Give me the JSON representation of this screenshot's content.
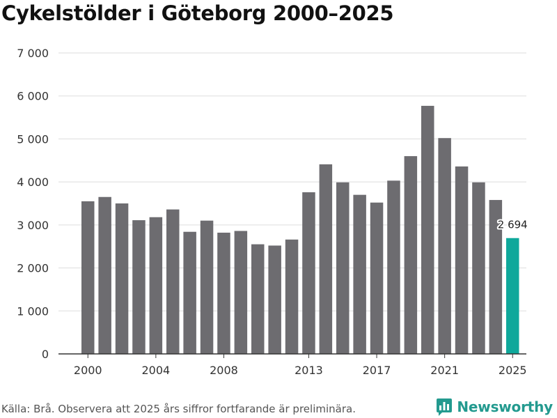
{
  "chart_data": {
    "type": "bar",
    "title": "Cykelstölder i Göteborg 2000–2025",
    "xlabel": "",
    "ylabel": "",
    "ylim": [
      0,
      7000
    ],
    "yticks": [
      0,
      1000,
      2000,
      3000,
      4000,
      5000,
      6000,
      7000
    ],
    "ytick_labels": [
      "0",
      "1 000",
      "2 000",
      "3 000",
      "4 000",
      "5 000",
      "6 000",
      "7 000"
    ],
    "xtick_labels": [
      "2000",
      "2004",
      "2008",
      "2013",
      "2017",
      "2021",
      "2025"
    ],
    "categories": [
      "2000",
      "2001",
      "2002",
      "2003",
      "2004",
      "2005",
      "2006",
      "2007",
      "2008",
      "2009",
      "2010",
      "2011",
      "2012",
      "2013",
      "2014",
      "2015",
      "2016",
      "2017",
      "2018",
      "2019",
      "2020",
      "2021",
      "2022",
      "2023",
      "2024",
      "2025"
    ],
    "values": [
      3550,
      3650,
      3500,
      3110,
      3180,
      3360,
      2840,
      3100,
      2820,
      2860,
      2550,
      2520,
      2660,
      3760,
      4410,
      3990,
      3700,
      3520,
      4030,
      4600,
      5770,
      5020,
      4360,
      3990,
      3580,
      2694
    ],
    "highlight": {
      "category": "2025",
      "label": "2 694"
    },
    "grid": true,
    "legend": "none",
    "colors": {
      "bar": "#6d6c70",
      "highlight": "#0fa89b",
      "grid": "#dddddd",
      "axis": "#333333"
    }
  },
  "footer": {
    "source": "Källa: Brå. Observera att 2025 års siffror fortfarande är preliminära.",
    "brand": "Newsworthy"
  },
  "icons": {
    "brand": "bar-chart-logo-icon"
  }
}
